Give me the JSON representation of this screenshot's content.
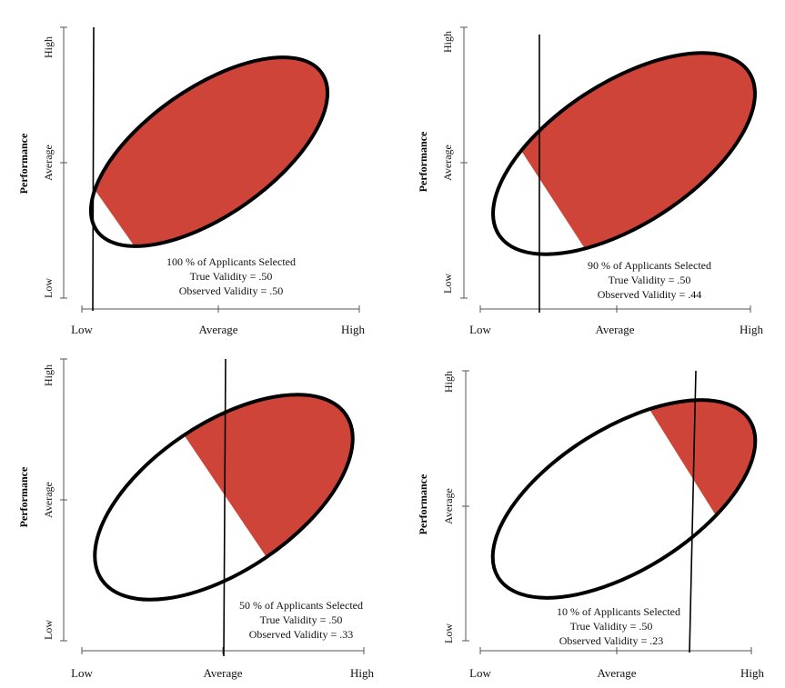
{
  "y_axis_title": "Performance",
  "y_ticks": [
    "High",
    "Average",
    "Low"
  ],
  "x_ticks": [
    "Low",
    "Average",
    "High"
  ],
  "fill_color": "#cf4438",
  "outline_color": "#000000",
  "panels": [
    {
      "selected_label": "100 % of Applicants Selected",
      "true_validity_label": "True Validity = .50",
      "observed_validity_label": "Observed Validity = .50",
      "percent_selected": 100,
      "true_validity": 0.5,
      "observed_validity": 0.5
    },
    {
      "selected_label": "90 % of Applicants Selected",
      "true_validity_label": "True Validity = .50",
      "observed_validity_label": "Observed Validity = .44",
      "percent_selected": 90,
      "true_validity": 0.5,
      "observed_validity": 0.44
    },
    {
      "selected_label": "50 % of Applicants Selected",
      "true_validity_label": "True Validity = .50",
      "observed_validity_label": "Observed Validity = .33",
      "percent_selected": 50,
      "true_validity": 0.5,
      "observed_validity": 0.33
    },
    {
      "selected_label": "10 % of Applicants Selected",
      "true_validity_label": "True Validity = .50",
      "observed_validity_label": "Observed Validity = .23",
      "percent_selected": 10,
      "true_validity": 0.5,
      "observed_validity": 0.23
    }
  ]
}
